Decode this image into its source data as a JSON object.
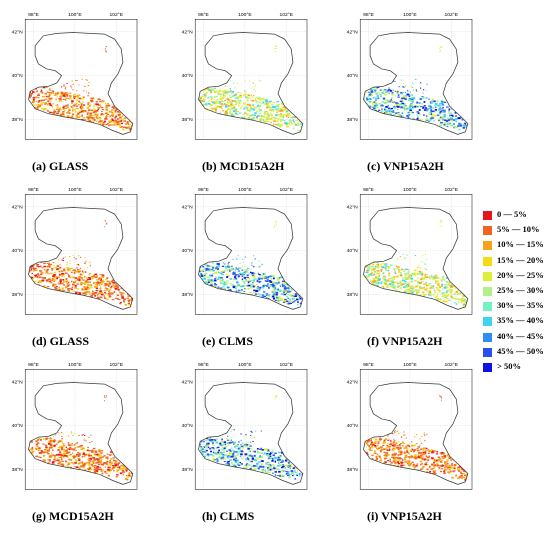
{
  "axes": {
    "lon_ticks": [
      "98°E",
      "100°E",
      "102°E"
    ],
    "lat_ticks": [
      "42°N",
      "40°N",
      "38°N"
    ]
  },
  "panels": [
    {
      "label": "(a) GLASS",
      "scheme": "warm"
    },
    {
      "label": "(b) MCD15A2H",
      "scheme": "mixed"
    },
    {
      "label": "(c) VNP15A2H",
      "scheme": "cool"
    },
    {
      "label": "(d) GLASS",
      "scheme": "warm"
    },
    {
      "label": "(e) CLMS",
      "scheme": "cool"
    },
    {
      "label": "(f) VNP15A2H",
      "scheme": "mixed"
    },
    {
      "label": "(g) MCD15A2H",
      "scheme": "warm"
    },
    {
      "label": "(h) CLMS",
      "scheme": "cool"
    },
    {
      "label": "(i) VNP15A2H",
      "scheme": "warm"
    }
  ],
  "legend": [
    {
      "label": "0 — 5%",
      "color": "#e8141b"
    },
    {
      "label": "5% — 10%",
      "color": "#f26322"
    },
    {
      "label": "10% — 15%",
      "color": "#f7a21b"
    },
    {
      "label": "15% — 20%",
      "color": "#f5dc12"
    },
    {
      "label": "20% — 25%",
      "color": "#ddf037"
    },
    {
      "label": "25% — 30%",
      "color": "#b4f08a"
    },
    {
      "label": "30% — 35%",
      "color": "#74f2c4"
    },
    {
      "label": "35% — 40%",
      "color": "#3fd3f2"
    },
    {
      "label": "40% — 45%",
      "color": "#2f8cf0"
    },
    {
      "label": "45% — 50%",
      "color": "#2a4ff0"
    },
    {
      "label": "> 50%",
      "color": "#1010e6"
    }
  ]
}
